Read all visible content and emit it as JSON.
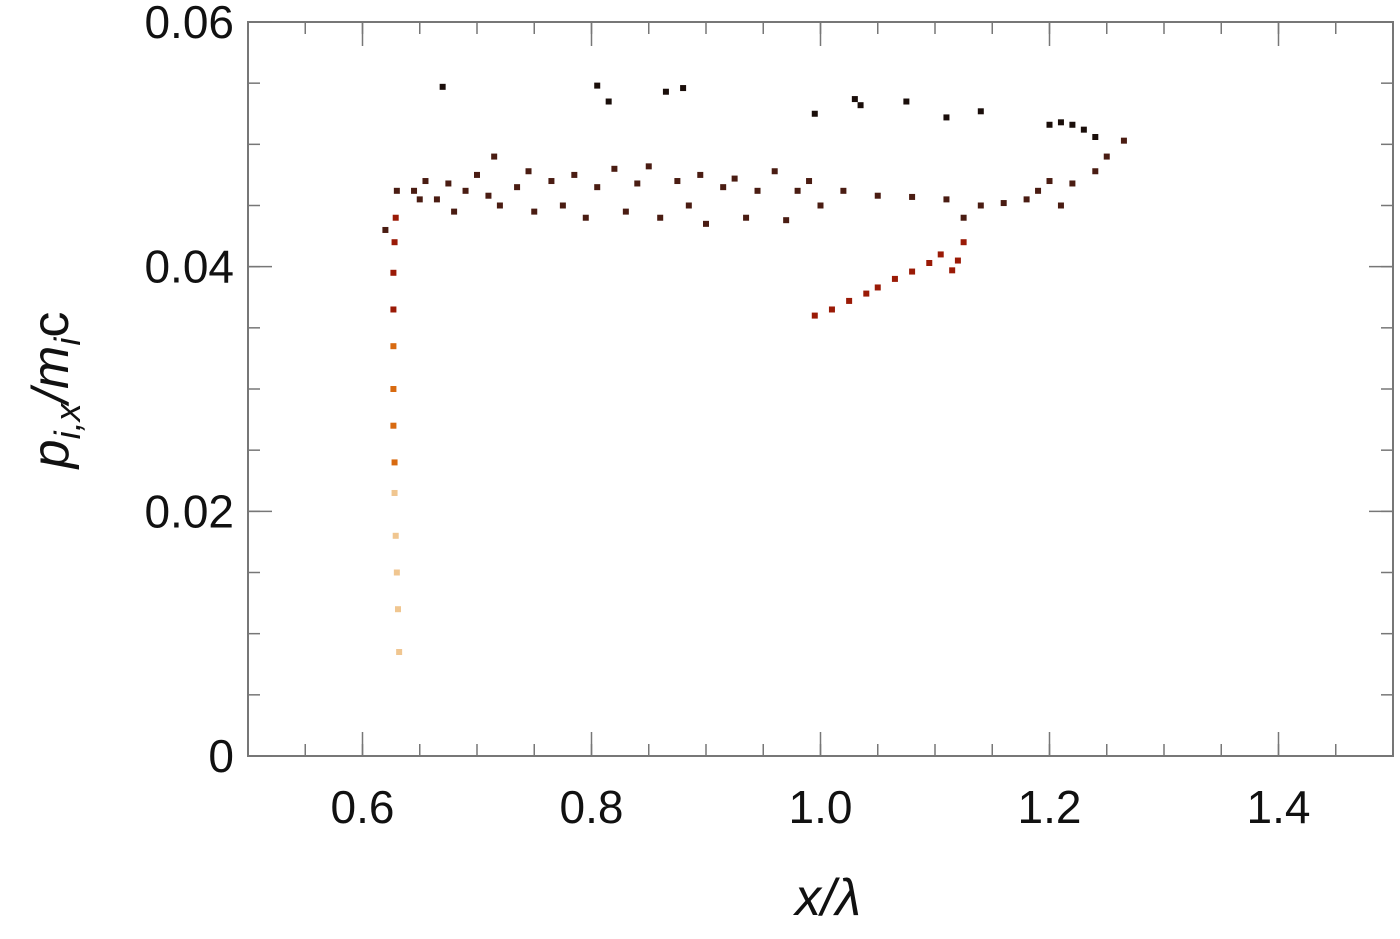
{
  "chart_data": {
    "type": "scatter",
    "title": "",
    "xlabel": "x/λ",
    "ylabel": "p_{i,x}/m_i c",
    "xlim": [
      0.5,
      1.5
    ],
    "ylim": [
      0,
      0.06
    ],
    "x_ticks": [
      {
        "value": 0.6,
        "label": "0.6"
      },
      {
        "value": 0.8,
        "label": "0.8"
      },
      {
        "value": 1.0,
        "label": "1.0"
      },
      {
        "value": 1.2,
        "label": "1.2"
      },
      {
        "value": 1.4,
        "label": "1.4"
      }
    ],
    "y_ticks": [
      {
        "value": 0,
        "label": "0"
      },
      {
        "value": 0.02,
        "label": "0.02"
      },
      {
        "value": 0.04,
        "label": "0.04"
      },
      {
        "value": 0.06,
        "label": "0.06"
      }
    ],
    "x_minor_step": 0.05,
    "y_minor_step": 0.005,
    "grid": false,
    "legend": "none",
    "colors": {
      "dark": "#1a0e0a",
      "mid": "#5a2418",
      "red": "#9a1a06",
      "orange": "#d86a10",
      "light": "#f0c690"
    },
    "series": [
      {
        "color": "#1a0e0a",
        "points": [
          [
            0.67,
            0.0547
          ],
          [
            0.805,
            0.0548
          ],
          [
            0.815,
            0.0535
          ],
          [
            0.865,
            0.0543
          ],
          [
            0.88,
            0.0546
          ],
          [
            0.995,
            0.0525
          ],
          [
            1.03,
            0.0537
          ],
          [
            1.035,
            0.0532
          ],
          [
            1.075,
            0.0535
          ],
          [
            1.11,
            0.0522
          ],
          [
            1.14,
            0.0527
          ],
          [
            1.2,
            0.0516
          ],
          [
            1.21,
            0.0518
          ],
          [
            1.22,
            0.0516
          ],
          [
            1.23,
            0.0512
          ],
          [
            1.24,
            0.0506
          ]
        ]
      },
      {
        "color": "#4a1c12",
        "points": [
          [
            0.62,
            0.043
          ],
          [
            0.63,
            0.0462
          ],
          [
            0.645,
            0.0462
          ],
          [
            0.65,
            0.0455
          ],
          [
            0.655,
            0.047
          ],
          [
            0.665,
            0.0455
          ],
          [
            0.675,
            0.0468
          ],
          [
            0.68,
            0.0445
          ],
          [
            0.69,
            0.0462
          ],
          [
            0.7,
            0.0475
          ],
          [
            0.71,
            0.0458
          ],
          [
            0.715,
            0.049
          ],
          [
            0.72,
            0.045
          ],
          [
            0.735,
            0.0465
          ],
          [
            0.745,
            0.0478
          ],
          [
            0.75,
            0.0445
          ],
          [
            0.765,
            0.047
          ],
          [
            0.775,
            0.045
          ],
          [
            0.785,
            0.0475
          ],
          [
            0.795,
            0.044
          ],
          [
            0.805,
            0.0465
          ],
          [
            0.82,
            0.048
          ],
          [
            0.83,
            0.0445
          ],
          [
            0.84,
            0.0468
          ],
          [
            0.85,
            0.0482
          ],
          [
            0.86,
            0.044
          ],
          [
            0.875,
            0.047
          ],
          [
            0.885,
            0.045
          ],
          [
            0.895,
            0.0475
          ],
          [
            0.9,
            0.0435
          ],
          [
            0.915,
            0.0465
          ],
          [
            0.925,
            0.0472
          ],
          [
            0.935,
            0.044
          ],
          [
            0.945,
            0.0462
          ],
          [
            0.96,
            0.0478
          ],
          [
            0.97,
            0.0438
          ],
          [
            0.98,
            0.0462
          ],
          [
            0.99,
            0.047
          ],
          [
            1.0,
            0.045
          ],
          [
            1.02,
            0.0462
          ],
          [
            1.05,
            0.0458
          ],
          [
            1.08,
            0.0457
          ],
          [
            1.11,
            0.0455
          ],
          [
            1.125,
            0.044
          ],
          [
            1.14,
            0.045
          ],
          [
            1.16,
            0.0452
          ],
          [
            1.18,
            0.0455
          ],
          [
            1.19,
            0.0462
          ],
          [
            1.2,
            0.047
          ],
          [
            1.21,
            0.045
          ],
          [
            1.22,
            0.0468
          ],
          [
            1.24,
            0.0478
          ],
          [
            1.25,
            0.049
          ],
          [
            1.265,
            0.0503
          ]
        ]
      },
      {
        "color": "#9a1a06",
        "points": [
          [
            0.995,
            0.036
          ],
          [
            1.01,
            0.0365
          ],
          [
            1.025,
            0.0372
          ],
          [
            1.04,
            0.0378
          ],
          [
            1.05,
            0.0383
          ],
          [
            1.065,
            0.039
          ],
          [
            1.08,
            0.0396
          ],
          [
            1.095,
            0.0403
          ],
          [
            1.105,
            0.041
          ],
          [
            1.115,
            0.0397
          ],
          [
            1.12,
            0.0405
          ],
          [
            1.125,
            0.042
          ]
        ]
      }
    ],
    "streak": {
      "color_top": "#9a1a06",
      "color_bottom": "#f5d8b0",
      "points": [
        [
          0.629,
          0.044
        ],
        [
          0.628,
          0.042
        ],
        [
          0.627,
          0.0395
        ],
        [
          0.627,
          0.0365
        ],
        [
          0.627,
          0.0335
        ],
        [
          0.627,
          0.03
        ],
        [
          0.627,
          0.027
        ],
        [
          0.628,
          0.024
        ],
        [
          0.628,
          0.0215
        ],
        [
          0.629,
          0.018
        ],
        [
          0.63,
          0.015
        ],
        [
          0.631,
          0.012
        ],
        [
          0.632,
          0.0085
        ]
      ]
    }
  }
}
